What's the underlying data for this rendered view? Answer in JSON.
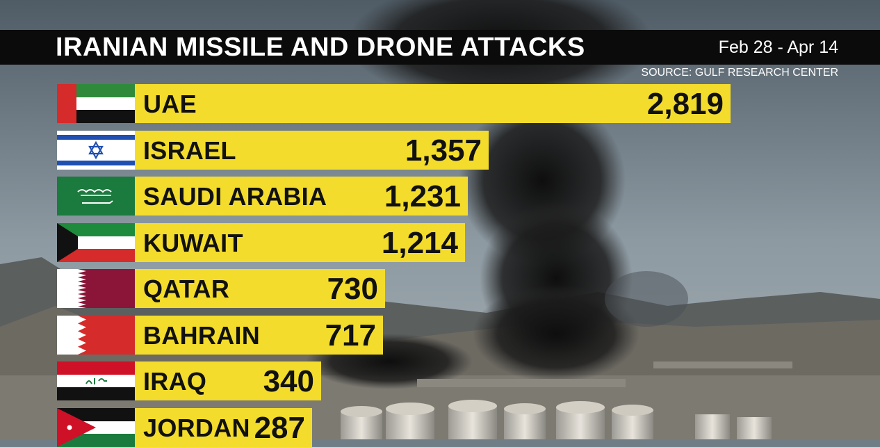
{
  "header": {
    "title": "IRANIAN MISSILE AND DRONE ATTACKS",
    "date_range": "Feb 28 - Apr 14",
    "source": "SOURCE: GULF RESEARCH CENTER"
  },
  "chart_data": {
    "type": "bar",
    "orientation": "horizontal",
    "title": "IRANIAN MISSILE AND DRONE ATTACKS",
    "subtitle": "Feb 28 - Apr 14",
    "source": "SOURCE: GULF RESEARCH CENTER",
    "categories": [
      "UAE",
      "ISRAEL",
      "SAUDI ARABIA",
      "KUWAIT",
      "QATAR",
      "BAHRAIN",
      "IRAQ",
      "JORDAN"
    ],
    "values": [
      2819,
      1357,
      1231,
      1214,
      730,
      717,
      340,
      287
    ],
    "value_labels": [
      "2,819",
      "1,357",
      "1,231",
      "1,214",
      "730",
      "717",
      "340",
      "287"
    ],
    "flags": [
      "uae-flag",
      "israel-flag",
      "saudi-arabia-flag",
      "kuwait-flag",
      "qatar-flag",
      "bahrain-flag",
      "iraq-flag",
      "jordan-flag"
    ],
    "bar_color": "#f3dc2b",
    "grid": false,
    "legend": "none"
  }
}
